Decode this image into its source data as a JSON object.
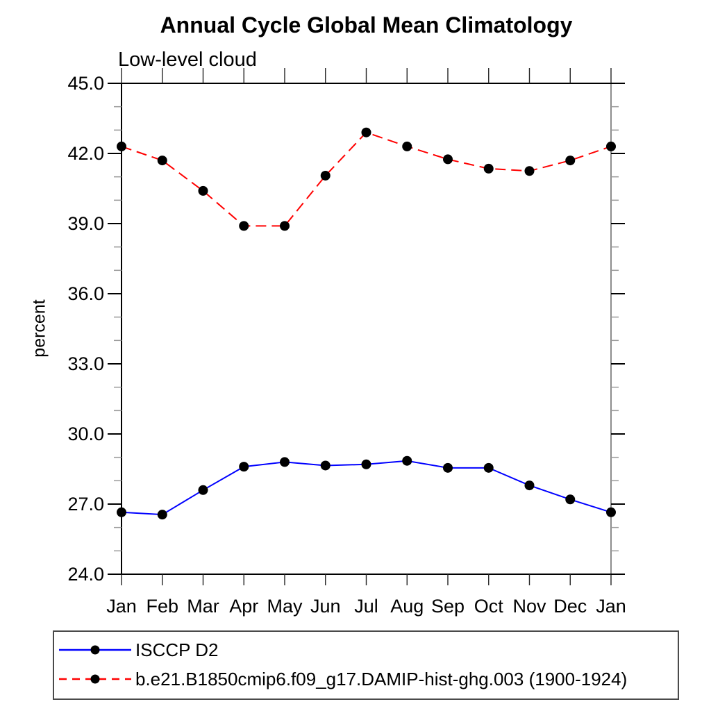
{
  "title": "Annual Cycle Global Mean Climatology",
  "subtitle": "Low-level cloud",
  "ylabel": "percent",
  "legend": {
    "entries": [
      {
        "label": "ISCCP D2",
        "color": "#0000ff",
        "style": "solid",
        "marker": "filled-circle"
      },
      {
        "label": "b.e21.B1850cmip6.f09_g17.DAMIP-hist-ghg.003 (1900-1924)",
        "color": "#ff0000",
        "style": "dashed",
        "marker": "filled-circle"
      }
    ]
  },
  "chart_data": {
    "type": "line",
    "title": "Annual Cycle Global Mean Climatology",
    "subtitle": "Low-level cloud",
    "xlabel": "",
    "ylabel": "percent",
    "categories": [
      "Jan",
      "Feb",
      "Mar",
      "Apr",
      "May",
      "Jun",
      "Jul",
      "Aug",
      "Sep",
      "Oct",
      "Nov",
      "Dec",
      "Jan"
    ],
    "series": [
      {
        "name": "ISCCP D2",
        "color": "#0000ff",
        "dash": "solid",
        "marker": "filled-circle",
        "marker_color": "#000000",
        "values": [
          26.65,
          26.55,
          27.6,
          28.6,
          28.8,
          28.65,
          28.7,
          28.85,
          28.55,
          28.55,
          27.8,
          27.2,
          26.65
        ]
      },
      {
        "name": "b.e21.B1850cmip6.f09_g17.DAMIP-hist-ghg.003 (1900-1924)",
        "color": "#ff0000",
        "dash": "dashed",
        "marker": "filled-circle",
        "marker_color": "#000000",
        "values": [
          42.3,
          41.7,
          40.4,
          38.9,
          38.9,
          41.05,
          42.9,
          42.3,
          41.75,
          41.35,
          41.25,
          41.7,
          42.3
        ]
      }
    ],
    "ylim": [
      24.0,
      45.0
    ],
    "y_major_ticks": [
      24,
      27,
      30,
      33,
      36,
      39,
      42,
      45
    ],
    "y_tick_labels": [
      "24.0",
      "27.0",
      "30.0",
      "33.0",
      "36.0",
      "39.0",
      "42.0",
      "45.0"
    ],
    "y_minor_step": 1,
    "grid": false,
    "legend_position": "bottom-left-box"
  }
}
